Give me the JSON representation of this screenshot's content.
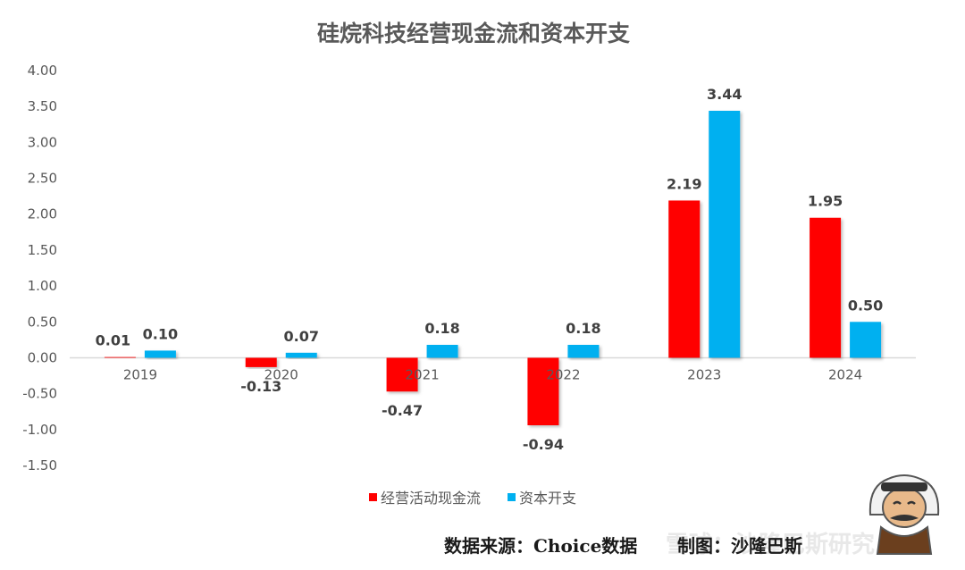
{
  "chart_data": {
    "type": "bar",
    "title": "硅烷科技经营现金流和资本开支",
    "categories": [
      "2019",
      "2020",
      "2021",
      "2022",
      "2023",
      "2024"
    ],
    "series": [
      {
        "name": "经营活动现金流",
        "color": "#ff0000",
        "values": [
          0.01,
          -0.13,
          -0.47,
          -0.94,
          2.19,
          1.95
        ]
      },
      {
        "name": "资本开支",
        "color": "#00b0f0",
        "values": [
          0.1,
          0.07,
          0.18,
          0.18,
          3.44,
          0.5
        ]
      }
    ],
    "ylim": [
      -1.5,
      4.0
    ],
    "yticks": [
      "4.00",
      "3.50",
      "3.00",
      "2.50",
      "2.00",
      "1.50",
      "1.00",
      "0.50",
      "0.00",
      "-0.50",
      "-1.00",
      "-1.50"
    ],
    "grid": false,
    "legend": "bottom"
  },
  "footer": {
    "source": "数据来源：Choice数据",
    "credit": "制图：沙隆巴斯",
    "watermark": "雪球：沙隆巴斯研究"
  },
  "colors": {
    "footer_line": "#4472c4"
  }
}
